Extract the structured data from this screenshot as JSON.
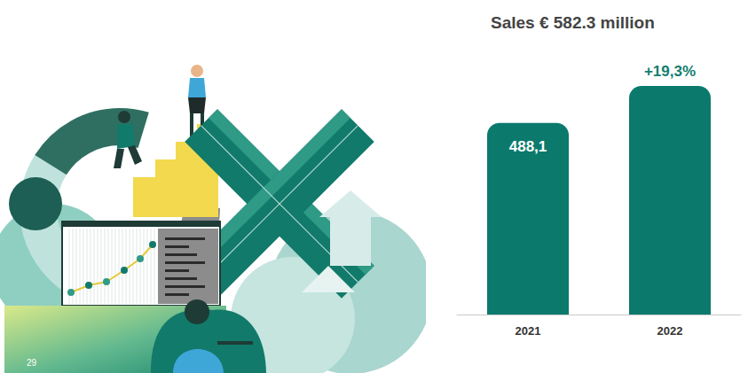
{
  "chart_data": {
    "type": "bar",
    "title": "Sales € 582.3 million",
    "categories": [
      "2021",
      "2022"
    ],
    "values": [
      488.1,
      582.3
    ],
    "value_labels": [
      "488,1",
      null
    ],
    "data_labels": true,
    "color": "#0b7a6c",
    "ylim": [
      0,
      582.3
    ],
    "tick_labels": "x",
    "grid": false,
    "annotations": [
      {
        "text": "+19,3%",
        "category": "2022"
      }
    ]
  },
  "page_number": "29"
}
